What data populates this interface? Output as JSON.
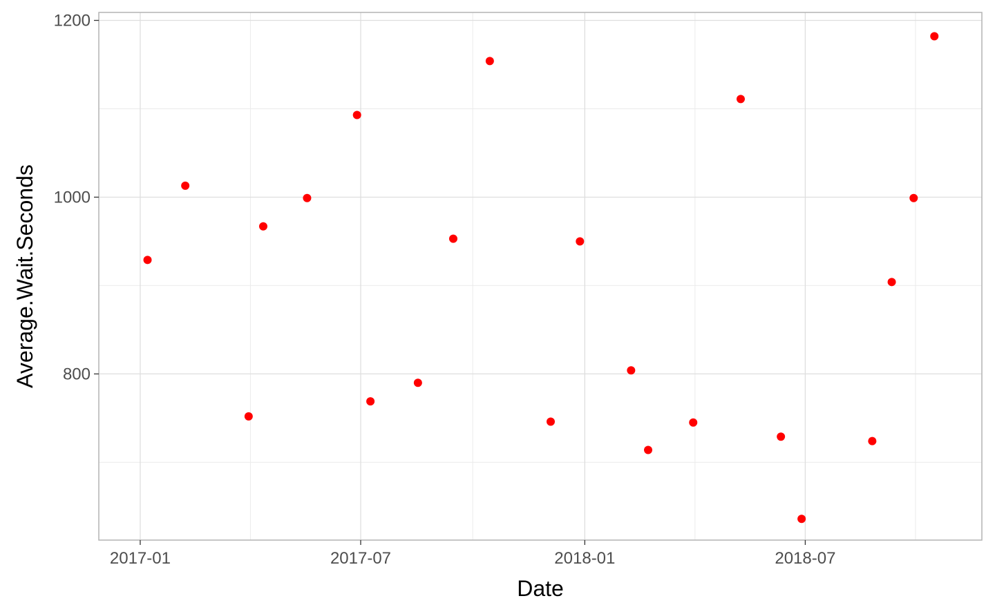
{
  "chart_data": {
    "type": "scatter",
    "title": "",
    "xlabel": "Date",
    "ylabel": "Average.Wait.Seconds",
    "x_ticks": [
      "2017-01",
      "2017-07",
      "2018-01",
      "2018-07"
    ],
    "x_tick_dates": [
      "2017-01-01",
      "2017-07-01",
      "2018-01-01",
      "2018-07-01"
    ],
    "y_ticks": [
      800,
      1000,
      1200
    ],
    "y_minor_ticks": [
      700,
      900,
      1100
    ],
    "xlim": [
      "2016-11-28",
      "2018-11-23"
    ],
    "ylim": [
      612,
      1209
    ],
    "grid": true,
    "legend": "none",
    "point_color": "#ff0000",
    "series": [
      {
        "points": [
          {
            "x": "2017-01-07",
            "y": 929
          },
          {
            "x": "2017-02-07",
            "y": 1013
          },
          {
            "x": "2017-03-31",
            "y": 752
          },
          {
            "x": "2017-04-12",
            "y": 967
          },
          {
            "x": "2017-05-18",
            "y": 999
          },
          {
            "x": "2017-06-28",
            "y": 1093
          },
          {
            "x": "2017-07-09",
            "y": 769
          },
          {
            "x": "2017-08-17",
            "y": 790
          },
          {
            "x": "2017-09-15",
            "y": 953
          },
          {
            "x": "2017-10-15",
            "y": 1154
          },
          {
            "x": "2017-12-04",
            "y": 746
          },
          {
            "x": "2017-12-28",
            "y": 950
          },
          {
            "x": "2018-02-08",
            "y": 804
          },
          {
            "x": "2018-02-22",
            "y": 714
          },
          {
            "x": "2018-03-31",
            "y": 745
          },
          {
            "x": "2018-05-09",
            "y": 1111
          },
          {
            "x": "2018-06-11",
            "y": 729
          },
          {
            "x": "2018-06-28",
            "y": 636
          },
          {
            "x": "2018-08-25",
            "y": 724
          },
          {
            "x": "2018-09-10",
            "y": 904
          },
          {
            "x": "2018-09-28",
            "y": 999
          },
          {
            "x": "2018-10-15",
            "y": 1182
          }
        ]
      }
    ]
  }
}
